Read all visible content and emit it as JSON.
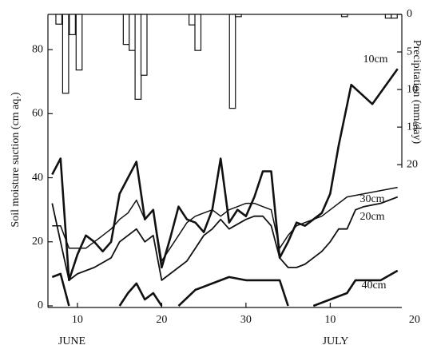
{
  "chart_data": {
    "type": "line",
    "y_label": "Soil moisture suction (cm aq.)",
    "y2_label": "Precipitation (mm/day)",
    "xlim": [
      6.5,
      48.5
    ],
    "xticks": [
      10,
      20,
      30,
      {
        "value": 40,
        "label": "10"
      },
      {
        "value": 50,
        "label": "20"
      }
    ],
    "month_labels": [
      "JUNE",
      "JULY"
    ],
    "ylim": [
      -0.5,
      91
    ],
    "yticks": [
      0,
      20,
      40,
      60,
      80
    ],
    "y2lim": [
      39,
      0
    ],
    "y2ticks": [
      0,
      5,
      10,
      15,
      20
    ],
    "color": "#111111",
    "series": [
      {
        "name": "10cm",
        "color": "#111111",
        "x": [
          7,
          8,
          9,
          10,
          11,
          12,
          13,
          14,
          15,
          16,
          17,
          18,
          19,
          20,
          21,
          22,
          23,
          24,
          25,
          26,
          27,
          28,
          29,
          30,
          31,
          32,
          33,
          34,
          35,
          36,
          37,
          38,
          39,
          40,
          41,
          42.5,
          45,
          48
        ],
        "values": [
          41,
          46,
          8,
          16,
          22,
          20,
          17,
          20,
          35,
          40,
          45,
          27,
          30,
          12,
          21,
          31,
          27,
          26,
          23,
          30,
          46,
          26,
          30,
          28,
          34,
          42,
          42,
          15,
          20,
          26,
          25,
          27,
          29,
          35,
          50,
          69,
          63,
          74
        ]
      },
      {
        "name": "30cm",
        "color": "#111111",
        "x": [
          7,
          8,
          9,
          10,
          11,
          12,
          13,
          14,
          15,
          16,
          17,
          18,
          19,
          20,
          21,
          22,
          23,
          24,
          25,
          26,
          27,
          28,
          29,
          30,
          31,
          32,
          33,
          34,
          35,
          36,
          37,
          38,
          39,
          40,
          42,
          44,
          46,
          48
        ],
        "values": [
          25,
          25,
          18,
          18,
          18,
          20,
          22,
          24,
          27,
          29,
          33,
          27,
          30,
          14,
          18,
          22,
          26,
          28,
          29,
          30,
          28,
          30,
          31,
          32,
          32,
          31,
          30,
          18,
          22,
          25,
          26,
          27,
          28,
          30,
          34,
          35,
          36,
          37
        ]
      },
      {
        "name": "20cm",
        "color": "#111111",
        "x": [
          7,
          8,
          9,
          10,
          12,
          14,
          15,
          16,
          17,
          18,
          19,
          20,
          21,
          23,
          24,
          25,
          26,
          27,
          28,
          30,
          31,
          32,
          33,
          34,
          35,
          36,
          37,
          38,
          39,
          40,
          41,
          42,
          43,
          44,
          46,
          48
        ],
        "values": [
          32,
          20,
          8,
          10,
          12,
          15,
          20,
          22,
          24,
          20,
          22,
          8,
          10,
          14,
          18,
          22,
          24,
          27,
          24,
          27,
          28,
          28,
          25,
          15,
          12,
          12,
          13,
          15,
          17,
          20,
          24,
          24,
          30,
          31,
          32,
          34
        ]
      },
      {
        "name": "40cm",
        "color": "#111111",
        "x": [
          7,
          8,
          9,
          12,
          15,
          16,
          17,
          18,
          19,
          20,
          21,
          22,
          24,
          26,
          28,
          30,
          32,
          34,
          35,
          36,
          38,
          40,
          42,
          43,
          46,
          48
        ],
        "values": [
          9,
          10,
          0,
          null,
          0,
          4,
          7,
          2,
          4,
          0,
          null,
          0,
          5,
          7,
          9,
          8,
          8,
          8,
          0,
          null,
          0,
          2,
          4,
          8,
          8,
          11
        ]
      }
    ],
    "precipitation": {
      "axis": "y2",
      "color": "#111111",
      "x": [
        7.8,
        8.6,
        9.4,
        10.2,
        15.8,
        16.5,
        17.2,
        17.9,
        23.6,
        24.3,
        28.4,
        29.1,
        41.7,
        46.9,
        47.6
      ],
      "values": [
        1.3,
        10.5,
        2.7,
        7.4,
        4,
        4.8,
        11.3,
        8.1,
        1.4,
        4.8,
        12.5,
        0.3,
        0.3,
        0.5,
        0.5
      ]
    }
  }
}
